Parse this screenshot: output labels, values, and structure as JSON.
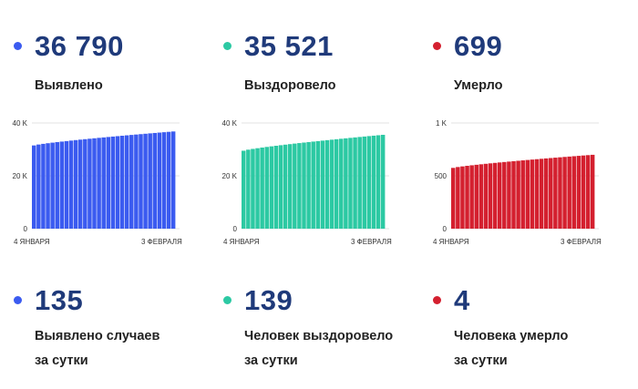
{
  "panels": [
    {
      "color": "#3b5bf0",
      "total": "36 790",
      "label": "Выявлено",
      "daily_value": "135",
      "daily_label_line1": "Выявлено случаев",
      "daily_label_line2": "за сутки",
      "chart_data": {
        "type": "bar",
        "ylim": [
          0,
          40000
        ],
        "yticks": [
          "0",
          "20 K",
          "40 K"
        ],
        "ytick_values": [
          0,
          20000,
          40000
        ],
        "x_start_label": "4 ЯНВАРЯ",
        "x_end_label": "3 ФЕВРАЛЯ",
        "start_value": 31500,
        "end_value": 36790,
        "bar_count": 31
      }
    },
    {
      "color": "#2cc9a3",
      "total": "35 521",
      "label": "Выздоровело",
      "daily_value": "139",
      "daily_label_line1": "Человек выздоровело",
      "daily_label_line2": "за сутки",
      "chart_data": {
        "type": "bar",
        "ylim": [
          0,
          40000
        ],
        "yticks": [
          "0",
          "20 K",
          "40 K"
        ],
        "ytick_values": [
          0,
          20000,
          40000
        ],
        "x_start_label": "4 ЯНВАРЯ",
        "x_end_label": "3 ФЕВРАЛЯ",
        "start_value": 29500,
        "end_value": 35521,
        "bar_count": 31
      }
    },
    {
      "color": "#d4202f",
      "total": "699",
      "label": "Умерло",
      "daily_value": "4",
      "daily_label_line1": "Человека умерло",
      "daily_label_line2": "за сутки",
      "chart_data": {
        "type": "bar",
        "ylim": [
          0,
          1000
        ],
        "yticks": [
          "0",
          "500",
          "1 K"
        ],
        "ytick_values": [
          0,
          500,
          1000
        ],
        "x_start_label": "4 ЯНВАРЯ",
        "x_end_label": "3 ФЕВРАЛЯ",
        "start_value": 575,
        "end_value": 699,
        "bar_count": 31
      }
    }
  ]
}
